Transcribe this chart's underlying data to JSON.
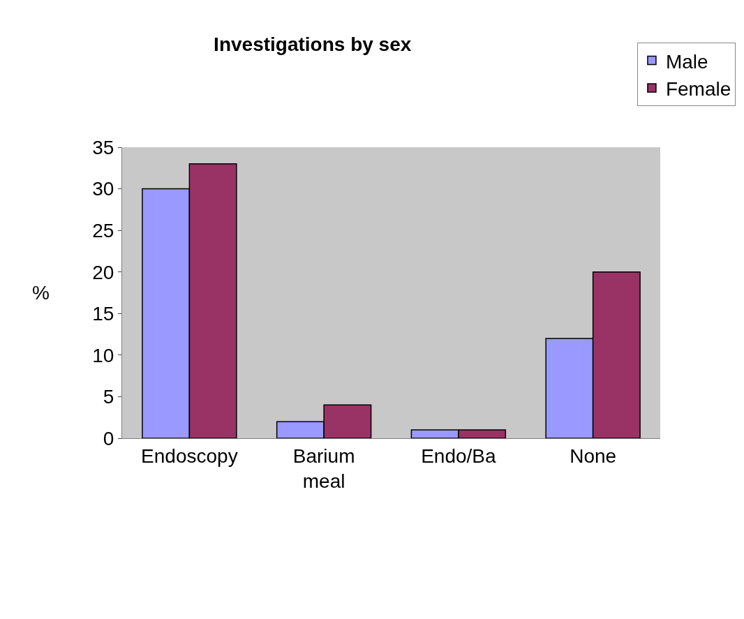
{
  "chart_data": {
    "type": "bar",
    "title": "Investigations by sex",
    "ylabel": "%",
    "categories": [
      "Endoscopy",
      "Barium meal",
      "Endo/Ba",
      "None"
    ],
    "series": [
      {
        "name": "Male",
        "color": "#9999ff",
        "values": [
          30,
          2,
          1,
          12
        ]
      },
      {
        "name": "Female",
        "color": "#993366",
        "values": [
          33,
          4,
          1,
          20
        ]
      }
    ],
    "ylim": [
      0,
      35
    ],
    "yticks": [
      0,
      5,
      10,
      15,
      20,
      25,
      30,
      35
    ],
    "grid": false,
    "legend": "top right"
  }
}
